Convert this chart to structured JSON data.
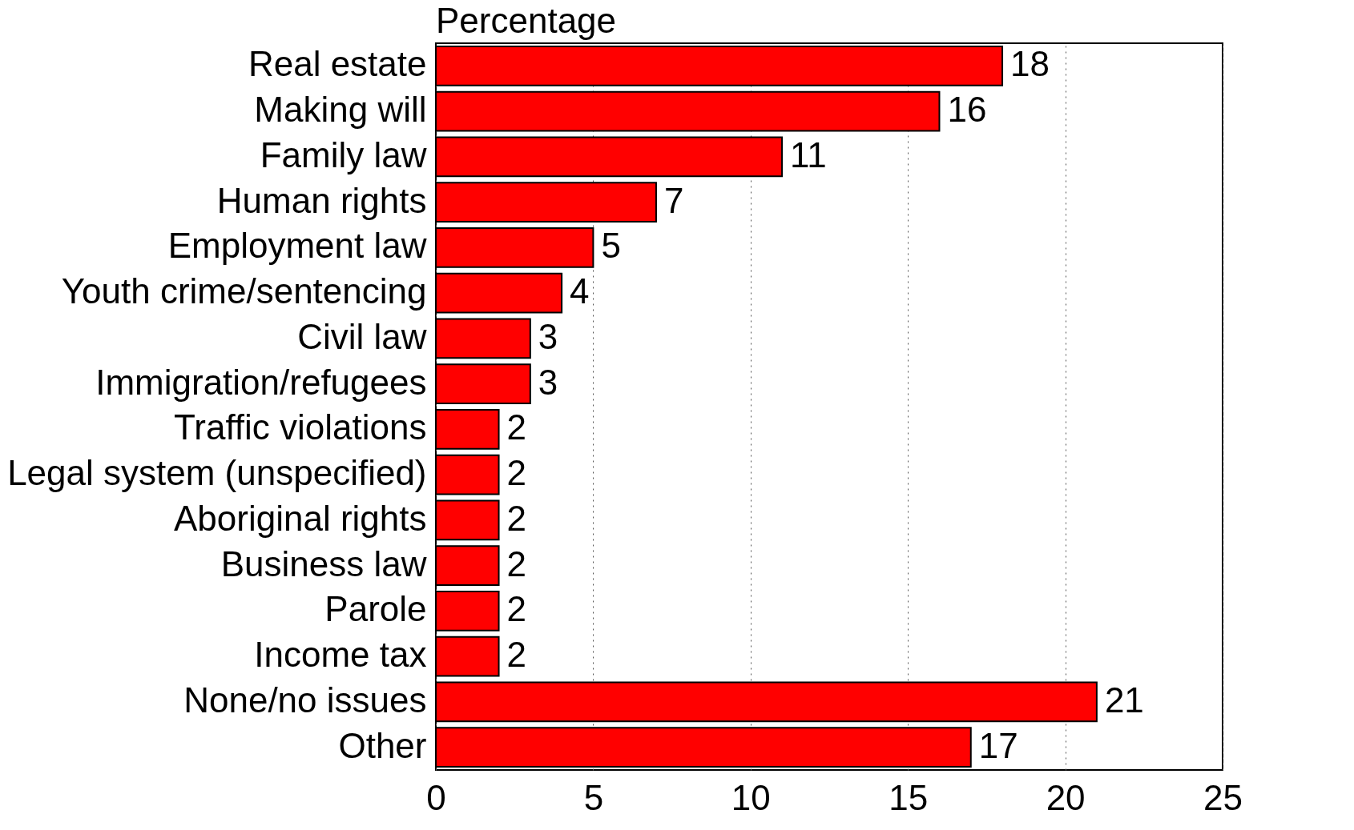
{
  "chart_data": {
    "type": "bar",
    "orientation": "horizontal",
    "xlabel": "Percentage",
    "categories": [
      "Real estate",
      "Making will",
      "Family law",
      "Human rights",
      "Employment law",
      "Youth crime/sentencing",
      "Civil law",
      "Immigration/refugees",
      "Traffic violations",
      "Legal system (unspecified)",
      "Aboriginal rights",
      "Business law",
      "Parole",
      "Income tax",
      "None/no issues",
      "Other"
    ],
    "values": [
      18,
      16,
      11,
      7,
      5,
      4,
      3,
      3,
      2,
      2,
      2,
      2,
      2,
      2,
      21,
      17
    ],
    "color": "#ff0000",
    "xlim": [
      0,
      25
    ],
    "xticks": [
      0,
      5,
      10,
      15,
      20,
      25
    ],
    "grid": "x",
    "data_labels": true
  }
}
